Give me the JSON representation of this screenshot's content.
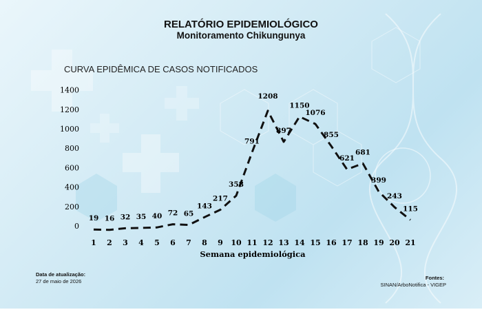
{
  "header": {
    "title": "RELATÓRIO EPIDEMIOLÓGICO",
    "subtitle": "Monitoramento Chikungunya"
  },
  "chart_data": {
    "type": "line",
    "title": "CURVA EPIDÊMICA DE CASOS NOTIFICADOS",
    "xlabel": "Semana epidemiológica",
    "ylabel": "",
    "x": [
      1,
      2,
      3,
      4,
      5,
      6,
      7,
      8,
      9,
      10,
      11,
      12,
      13,
      14,
      15,
      16,
      17,
      18,
      19,
      20,
      21
    ],
    "series": [
      {
        "values": [
          19,
          16,
          32,
          35,
          40,
          72,
          65,
          143,
          217,
          358,
          791,
          1208,
          897,
          1150,
          1076,
          855,
          621,
          681,
          399,
          243,
          115
        ]
      }
    ],
    "ylim": [
      0,
      1400
    ],
    "yticks": [
      0,
      200,
      400,
      600,
      800,
      1000,
      1200,
      1400
    ],
    "line_style": "dashed",
    "line_color": "#111111",
    "grid": false,
    "data_labels": true
  },
  "footer": {
    "update_label": "Data de atualização:",
    "update_date": "27 de maio de 2026",
    "sources_label": "Fontes:",
    "sources": "SINAN/ArboNotifica - VIGEP"
  }
}
